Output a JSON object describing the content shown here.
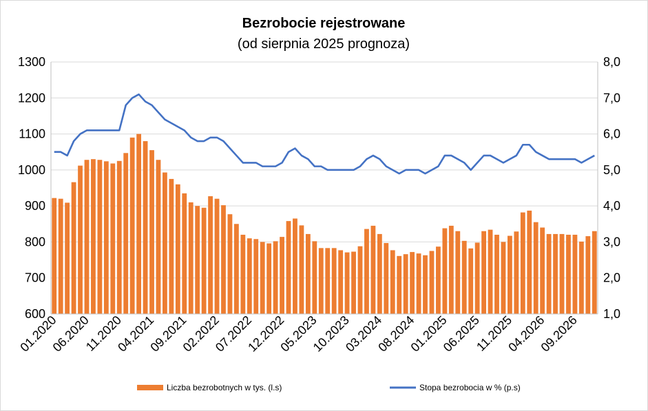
{
  "chart_data": {
    "type": "bar+line",
    "title": "Bezrobocie rejestrowane",
    "subtitle": "(od sierpnia 2025 prognoza)",
    "left_axis": {
      "ylim": [
        600,
        1300
      ],
      "ticks": [
        "600",
        "700",
        "800",
        "900",
        "1000",
        "1100",
        "1200",
        "1300"
      ],
      "tick_values": [
        600,
        700,
        800,
        900,
        1000,
        1100,
        1200,
        1300
      ]
    },
    "right_axis": {
      "ylim": [
        1.0,
        8.0
      ],
      "ticks": [
        "1,0",
        "2,0",
        "3,0",
        "4,0",
        "5,0",
        "6,0",
        "7,0",
        "8,0"
      ],
      "tick_values": [
        1,
        2,
        3,
        4,
        5,
        6,
        7,
        8
      ]
    },
    "grid": true,
    "legend_position": "bottom",
    "x_tick_labels": [
      {
        "index": 0,
        "label": "01.2020"
      },
      {
        "index": 5,
        "label": "06.2020"
      },
      {
        "index": 10,
        "label": "11.2020"
      },
      {
        "index": 15,
        "label": "04.2021"
      },
      {
        "index": 20,
        "label": "09.2021"
      },
      {
        "index": 25,
        "label": "02.2022"
      },
      {
        "index": 30,
        "label": "07.2022"
      },
      {
        "index": 35,
        "label": "12.2022"
      },
      {
        "index": 40,
        "label": "05.2023"
      },
      {
        "index": 45,
        "label": "10.2023"
      },
      {
        "index": 50,
        "label": "03.2024"
      },
      {
        "index": 55,
        "label": "08.2024"
      },
      {
        "index": 60,
        "label": "01.2025"
      },
      {
        "index": 65,
        "label": "06.2025"
      },
      {
        "index": 70,
        "label": "11.2025"
      },
      {
        "index": 75,
        "label": "04.2026"
      },
      {
        "index": 80,
        "label": "09.2026"
      }
    ],
    "series": [
      {
        "name": "Liczba bezrobotnych w tys. (l.s)",
        "type": "bar",
        "axis": "left",
        "color": "#ED7D31",
        "values": [
          922,
          920,
          909,
          966,
          1012,
          1028,
          1030,
          1028,
          1024,
          1018,
          1025,
          1047,
          1090,
          1100,
          1080,
          1055,
          1028,
          993,
          975,
          960,
          935,
          910,
          900,
          895,
          927,
          920,
          902,
          877,
          850,
          820,
          810,
          808,
          800,
          796,
          802,
          814,
          858,
          865,
          846,
          822,
          802,
          783,
          783,
          783,
          777,
          771,
          773,
          788,
          836,
          845,
          822,
          797,
          777,
          761,
          766,
          772,
          768,
          763,
          775,
          787,
          838,
          845,
          830,
          803,
          782,
          798,
          830,
          834,
          820,
          800,
          817,
          829,
          882,
          887,
          855,
          840,
          822,
          822,
          822,
          820,
          820,
          801,
          816,
          830
        ]
      },
      {
        "name": "Stopa bezrobocia w % (p.s)",
        "type": "line",
        "axis": "right",
        "color": "#4472C4",
        "values": [
          5.5,
          5.5,
          5.4,
          5.8,
          6.0,
          6.1,
          6.1,
          6.1,
          6.1,
          6.1,
          6.1,
          6.8,
          7.0,
          7.1,
          6.9,
          6.8,
          6.6,
          6.4,
          6.3,
          6.2,
          6.1,
          5.9,
          5.8,
          5.8,
          5.9,
          5.9,
          5.8,
          5.6,
          5.4,
          5.2,
          5.2,
          5.2,
          5.1,
          5.1,
          5.1,
          5.2,
          5.5,
          5.6,
          5.4,
          5.3,
          5.1,
          5.1,
          5.0,
          5.0,
          5.0,
          5.0,
          5.0,
          5.1,
          5.3,
          5.4,
          5.3,
          5.1,
          5.0,
          4.9,
          5.0,
          5.0,
          5.0,
          4.9,
          5.0,
          5.1,
          5.4,
          5.4,
          5.3,
          5.2,
          5.0,
          5.2,
          5.4,
          5.4,
          5.3,
          5.2,
          5.3,
          5.4,
          5.7,
          5.7,
          5.5,
          5.4,
          5.3,
          5.3,
          5.3,
          5.3,
          5.3,
          5.2,
          5.3,
          5.4
        ]
      }
    ]
  }
}
